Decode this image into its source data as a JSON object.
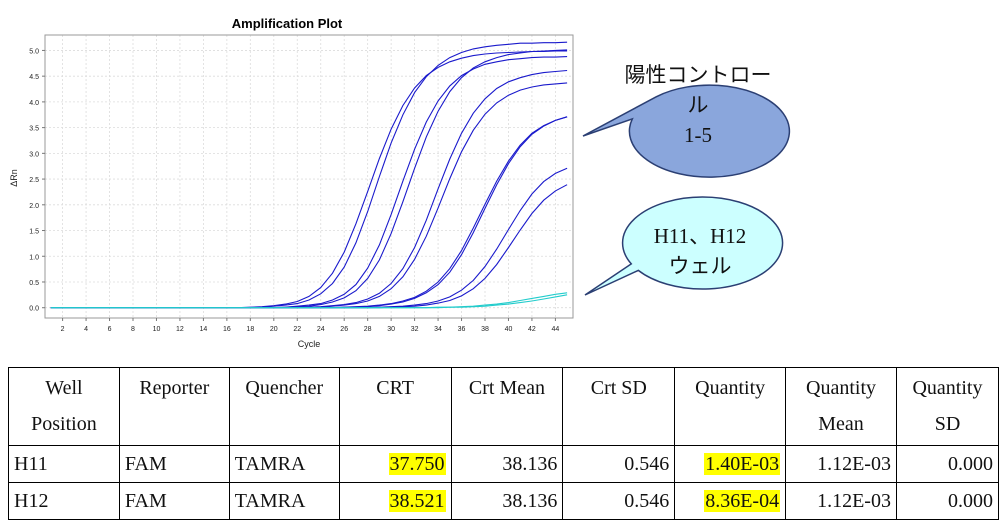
{
  "chart_data": {
    "type": "line",
    "title": "Amplification Plot",
    "xlabel": "Cycle",
    "ylabel": "ΔRn",
    "xlim": [
      0.5,
      45.5
    ],
    "ylim": [
      -0.2,
      5.3
    ],
    "x_ticks": [
      2,
      4,
      6,
      8,
      10,
      12,
      14,
      16,
      18,
      20,
      22,
      24,
      26,
      28,
      30,
      32,
      34,
      36,
      38,
      40,
      42,
      44
    ],
    "y_ticks": [
      "0.0",
      "0.5",
      "1.0",
      "1.5",
      "2.0",
      "2.5",
      "3.0",
      "3.5",
      "4.0",
      "4.5",
      "5.0"
    ],
    "grid": true,
    "x": [
      1,
      2,
      3,
      4,
      5,
      6,
      7,
      8,
      9,
      10,
      11,
      12,
      13,
      14,
      15,
      16,
      17,
      18,
      19,
      20,
      21,
      22,
      23,
      24,
      25,
      26,
      27,
      28,
      29,
      30,
      31,
      32,
      33,
      34,
      35,
      36,
      37,
      38,
      39,
      40,
      41,
      42,
      43,
      44,
      45
    ],
    "series": [
      {
        "color": "#1a1acc",
        "values": [
          0.0,
          0.0,
          0.0,
          0.0,
          0.0,
          0.0,
          0.0,
          0.0,
          0.0,
          0.0,
          0.0,
          0.0,
          0.0,
          0.0,
          0.0,
          0.0,
          0.0,
          0.01,
          0.02,
          0.04,
          0.07,
          0.12,
          0.22,
          0.39,
          0.67,
          1.08,
          1.63,
          2.26,
          2.9,
          3.47,
          3.93,
          4.27,
          4.51,
          4.67,
          4.78,
          4.85,
          4.9,
          4.93,
          4.95,
          4.96,
          4.97,
          4.98,
          4.98,
          4.99,
          4.99
        ]
      },
      {
        "color": "#1a1acc",
        "values": [
          0.0,
          0.0,
          0.0,
          0.0,
          0.0,
          0.0,
          0.0,
          0.0,
          0.0,
          0.0,
          0.0,
          0.0,
          0.0,
          0.0,
          0.0,
          0.0,
          0.0,
          0.0,
          0.01,
          0.03,
          0.05,
          0.08,
          0.15,
          0.27,
          0.47,
          0.79,
          1.26,
          1.87,
          2.55,
          3.2,
          3.75,
          4.18,
          4.49,
          4.71,
          4.86,
          4.96,
          5.03,
          5.07,
          5.1,
          5.12,
          5.14,
          5.14,
          5.15,
          5.15,
          5.16
        ]
      },
      {
        "color": "#1a1acc",
        "values": [
          0.0,
          0.0,
          0.0,
          0.0,
          0.0,
          0.0,
          0.0,
          0.0,
          0.0,
          0.0,
          0.0,
          0.0,
          0.0,
          0.0,
          0.0,
          0.0,
          0.0,
          0.0,
          0.0,
          0.0,
          0.01,
          0.03,
          0.05,
          0.08,
          0.15,
          0.26,
          0.45,
          0.77,
          1.22,
          1.81,
          2.46,
          3.08,
          3.61,
          4.02,
          4.31,
          4.51,
          4.64,
          4.73,
          4.78,
          4.82,
          4.84,
          4.86,
          4.87,
          4.87,
          4.88
        ]
      },
      {
        "color": "#1a1acc",
        "values": [
          0.0,
          0.0,
          0.0,
          0.0,
          0.0,
          0.0,
          0.0,
          0.0,
          0.0,
          0.0,
          0.0,
          0.0,
          0.0,
          0.0,
          0.0,
          0.0,
          0.0,
          0.0,
          0.0,
          0.0,
          0.01,
          0.02,
          0.03,
          0.06,
          0.11,
          0.19,
          0.33,
          0.57,
          0.93,
          1.44,
          2.06,
          2.71,
          3.32,
          3.82,
          4.2,
          4.47,
          4.66,
          4.78,
          4.86,
          4.92,
          4.95,
          4.98,
          4.99,
          5.0,
          5.01
        ]
      },
      {
        "color": "#1a1acc",
        "values": [
          0.0,
          0.0,
          0.0,
          0.0,
          0.0,
          0.0,
          0.0,
          0.0,
          0.0,
          0.0,
          0.0,
          0.0,
          0.0,
          0.0,
          0.0,
          0.0,
          0.0,
          0.0,
          0.0,
          0.0,
          0.0,
          0.0,
          0.01,
          0.02,
          0.04,
          0.06,
          0.1,
          0.17,
          0.28,
          0.47,
          0.76,
          1.17,
          1.7,
          2.31,
          2.89,
          3.39,
          3.78,
          4.06,
          4.26,
          4.39,
          4.47,
          4.53,
          4.57,
          4.59,
          4.61
        ]
      },
      {
        "color": "#1a1acc",
        "values": [
          0.0,
          0.0,
          0.0,
          0.0,
          0.0,
          0.0,
          0.0,
          0.0,
          0.0,
          0.0,
          0.0,
          0.0,
          0.0,
          0.0,
          0.0,
          0.0,
          0.0,
          0.0,
          0.0,
          0.0,
          0.0,
          0.0,
          0.0,
          0.01,
          0.03,
          0.05,
          0.08,
          0.13,
          0.22,
          0.37,
          0.6,
          0.94,
          1.39,
          1.94,
          2.51,
          3.03,
          3.45,
          3.76,
          3.98,
          4.13,
          4.23,
          4.29,
          4.33,
          4.35,
          4.37
        ]
      },
      {
        "color": "#1a1acc",
        "values": [
          0.0,
          0.0,
          0.0,
          0.0,
          0.0,
          0.0,
          0.0,
          0.0,
          0.0,
          0.0,
          0.0,
          0.0,
          0.0,
          0.0,
          0.0,
          0.0,
          0.0,
          0.0,
          0.0,
          0.0,
          0.0,
          0.0,
          0.0,
          0.0,
          0.0,
          0.01,
          0.02,
          0.03,
          0.05,
          0.08,
          0.13,
          0.2,
          0.32,
          0.5,
          0.76,
          1.11,
          1.55,
          2.01,
          2.46,
          2.85,
          3.16,
          3.39,
          3.54,
          3.64,
          3.71
        ]
      },
      {
        "color": "#1a1acc",
        "values": [
          0.0,
          0.0,
          0.0,
          0.0,
          0.0,
          0.0,
          0.0,
          0.0,
          0.0,
          0.0,
          0.0,
          0.0,
          0.0,
          0.0,
          0.0,
          0.0,
          0.0,
          0.0,
          0.0,
          0.0,
          0.0,
          0.0,
          0.0,
          0.0,
          0.0,
          0.01,
          0.01,
          0.02,
          0.04,
          0.07,
          0.11,
          0.18,
          0.29,
          0.45,
          0.69,
          1.03,
          1.46,
          1.93,
          2.39,
          2.8,
          3.13,
          3.37,
          3.53,
          3.64,
          3.71
        ]
      },
      {
        "color": "#1a1acc",
        "values": [
          0.0,
          0.0,
          0.0,
          0.0,
          0.0,
          0.0,
          0.0,
          0.0,
          0.0,
          0.0,
          0.0,
          0.0,
          0.0,
          0.0,
          0.0,
          0.0,
          0.0,
          0.0,
          0.0,
          0.0,
          0.0,
          0.0,
          0.0,
          0.0,
          0.0,
          0.0,
          0.0,
          0.0,
          0.01,
          0.02,
          0.03,
          0.05,
          0.08,
          0.13,
          0.21,
          0.34,
          0.53,
          0.8,
          1.14,
          1.52,
          1.89,
          2.21,
          2.45,
          2.61,
          2.71
        ]
      },
      {
        "color": "#1a1acc",
        "values": [
          0.0,
          0.0,
          0.0,
          0.0,
          0.0,
          0.0,
          0.0,
          0.0,
          0.0,
          0.0,
          0.0,
          0.0,
          0.0,
          0.0,
          0.0,
          0.0,
          0.0,
          0.0,
          0.0,
          0.0,
          0.0,
          0.0,
          0.0,
          0.0,
          0.0,
          0.0,
          0.0,
          0.0,
          0.0,
          0.01,
          0.02,
          0.03,
          0.05,
          0.09,
          0.14,
          0.23,
          0.37,
          0.57,
          0.84,
          1.17,
          1.51,
          1.83,
          2.09,
          2.27,
          2.39
        ]
      },
      {
        "color": "#22cccc",
        "values": [
          0.0,
          0.0,
          0.0,
          0.0,
          0.0,
          0.0,
          0.0,
          0.0,
          0.0,
          0.0,
          0.0,
          0.0,
          0.0,
          0.0,
          0.0,
          0.0,
          0.0,
          0.0,
          0.0,
          0.0,
          0.0,
          0.0,
          0.0,
          0.0,
          0.0,
          0.0,
          0.0,
          0.0,
          0.0,
          0.0,
          0.0,
          0.0,
          0.0,
          0.01,
          0.01,
          0.02,
          0.03,
          0.05,
          0.07,
          0.1,
          0.14,
          0.18,
          0.22,
          0.26,
          0.29
        ]
      },
      {
        "color": "#22cccc",
        "values": [
          0.0,
          0.0,
          0.0,
          0.0,
          0.0,
          0.0,
          0.0,
          0.0,
          0.0,
          0.0,
          0.0,
          0.0,
          0.0,
          0.0,
          0.0,
          0.0,
          0.0,
          0.0,
          0.0,
          0.0,
          0.0,
          0.0,
          0.0,
          0.0,
          0.0,
          0.0,
          0.0,
          0.0,
          0.0,
          0.0,
          0.0,
          0.0,
          0.0,
          0.0,
          0.01,
          0.01,
          0.02,
          0.03,
          0.05,
          0.07,
          0.1,
          0.13,
          0.17,
          0.21,
          0.25
        ]
      }
    ]
  },
  "callouts": {
    "positive": {
      "line1": "陽性コントロール",
      "line2": "1-5",
      "fill": "#8aa6dc"
    },
    "wells": {
      "line1": "H11、H12",
      "line2": "ウェル",
      "fill": "#ccffff"
    }
  },
  "table": {
    "headers": [
      {
        "line1": "Well",
        "line2": "Position"
      },
      {
        "line1": "Reporter",
        "line2": ""
      },
      {
        "line1": "Quencher",
        "line2": ""
      },
      {
        "line1": "CRT",
        "line2": ""
      },
      {
        "line1": "Crt Mean",
        "line2": ""
      },
      {
        "line1": "Crt SD",
        "line2": ""
      },
      {
        "line1": "Quantity",
        "line2": ""
      },
      {
        "line1": "Quantity",
        "line2": "Mean"
      },
      {
        "line1": "Quantity",
        "line2": "SD"
      }
    ],
    "rows": [
      {
        "well": "H11",
        "reporter": "FAM",
        "quencher": "TAMRA",
        "crt": "37.750",
        "crt_mean": "38.136",
        "crt_sd": "0.546",
        "quantity": "1.40E-03",
        "quantity_mean": "1.12E-03",
        "quantity_sd": "0.000"
      },
      {
        "well": "H12",
        "reporter": "FAM",
        "quencher": "TAMRA",
        "crt": "38.521",
        "crt_mean": "38.136",
        "crt_sd": "0.546",
        "quantity": "8.36E-04",
        "quantity_mean": "1.12E-03",
        "quantity_sd": "0.000"
      }
    ],
    "highlight_color": "#ffff00"
  }
}
